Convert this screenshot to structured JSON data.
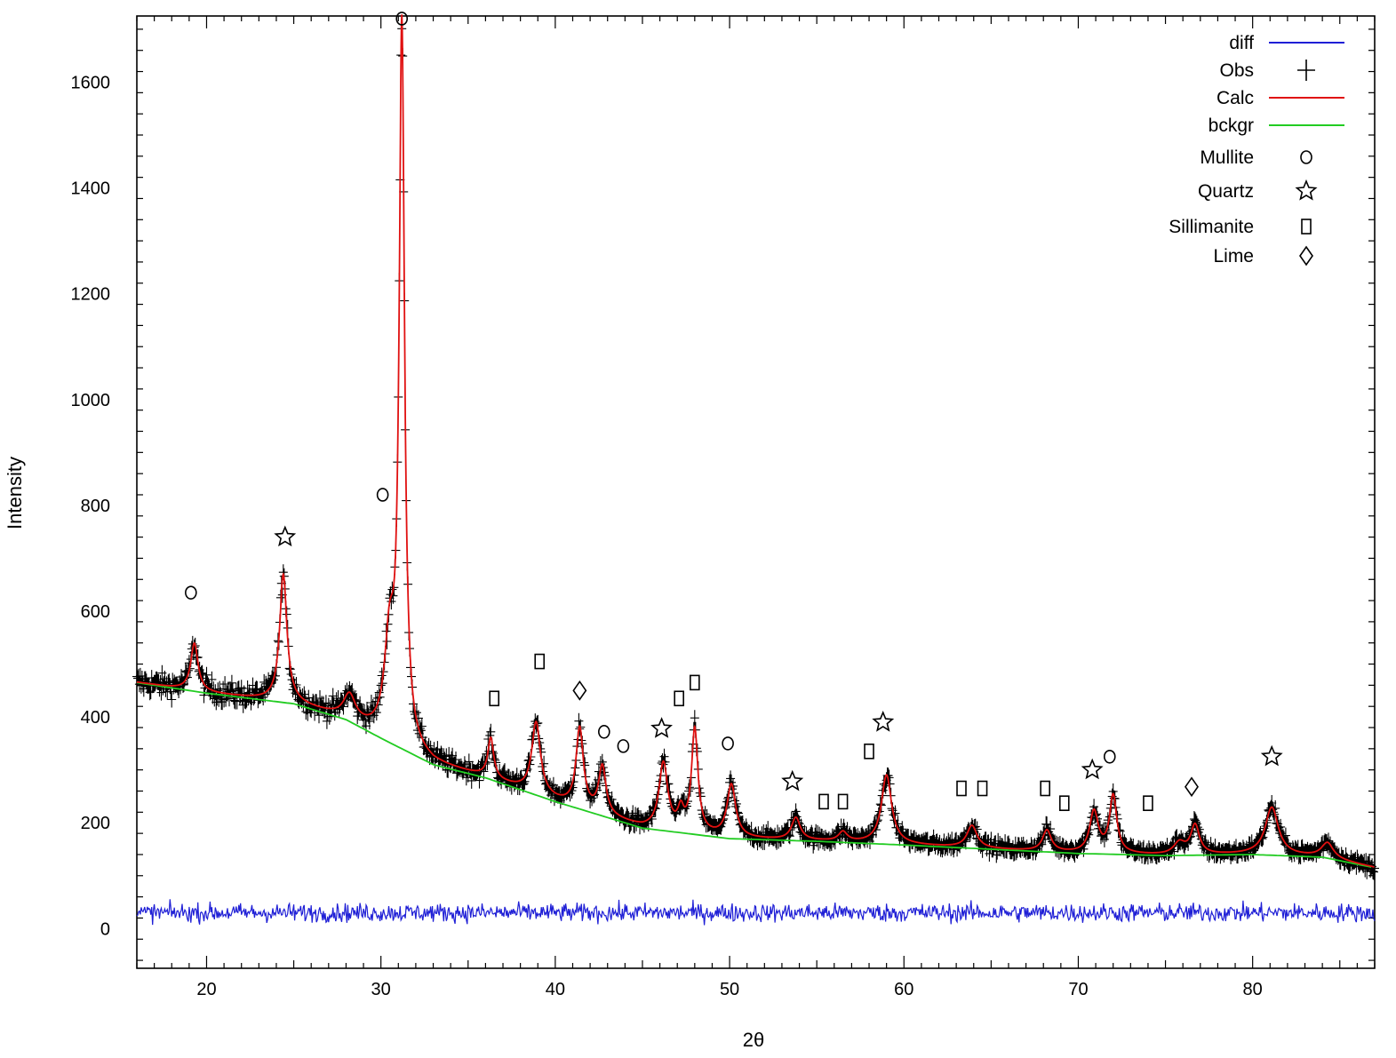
{
  "chart_data": {
    "type": "line",
    "title": "",
    "xlabel": "2θ",
    "ylabel": "Intensity",
    "xlim": [
      16,
      87
    ],
    "ylim": [
      -75,
      1725
    ],
    "x_ticks": [
      20,
      30,
      40,
      50,
      60,
      70,
      80
    ],
    "y_ticks": [
      0,
      200,
      400,
      600,
      800,
      1000,
      1200,
      1400,
      1600
    ],
    "grid": false,
    "legend_position": "top-right",
    "legend": [
      {
        "label": "diff",
        "kind": "line",
        "color": "#1f1fd6"
      },
      {
        "label": "Obs",
        "kind": "plus",
        "color": "#000000"
      },
      {
        "label": "Calc",
        "kind": "line",
        "color": "#e01010"
      },
      {
        "label": "bckgr",
        "kind": "line",
        "color": "#22cc22"
      },
      {
        "label": "Mullite",
        "kind": "circle",
        "color": "#000000"
      },
      {
        "label": "Quartz",
        "kind": "star",
        "color": "#000000"
      },
      {
        "label": "Sillimanite",
        "kind": "rect",
        "color": "#000000"
      },
      {
        "label": "Lime",
        "kind": "diamond",
        "color": "#000000"
      }
    ],
    "background": {
      "name": "bckgr",
      "x": [
        16,
        20,
        25,
        28,
        30,
        33,
        36,
        40,
        45,
        50,
        55,
        60,
        65,
        70,
        75,
        80,
        84,
        87
      ],
      "y": [
        465,
        445,
        425,
        395,
        360,
        310,
        285,
        240,
        190,
        170,
        165,
        158,
        150,
        142,
        138,
        140,
        135,
        115
      ]
    },
    "calc_peaks": [
      {
        "x": 19.3,
        "height": 90,
        "width": 0.25
      },
      {
        "x": 24.4,
        "height": 240,
        "width": 0.25
      },
      {
        "x": 28.2,
        "height": 45,
        "width": 0.4
      },
      {
        "x": 30.5,
        "height": 180,
        "width": 0.35
      },
      {
        "x": 31.2,
        "height": 1350,
        "width": 0.18
      },
      {
        "x": 36.3,
        "height": 75,
        "width": 0.2
      },
      {
        "x": 38.9,
        "height": 135,
        "width": 0.3
      },
      {
        "x": 41.4,
        "height": 150,
        "width": 0.25
      },
      {
        "x": 42.7,
        "height": 90,
        "width": 0.25
      },
      {
        "x": 46.2,
        "height": 125,
        "width": 0.3
      },
      {
        "x": 47.2,
        "height": 35,
        "width": 0.2
      },
      {
        "x": 48.0,
        "height": 195,
        "width": 0.22
      },
      {
        "x": 50.1,
        "height": 100,
        "width": 0.3
      },
      {
        "x": 53.8,
        "height": 42,
        "width": 0.3
      },
      {
        "x": 56.5,
        "height": 18,
        "width": 0.3
      },
      {
        "x": 59.0,
        "height": 130,
        "width": 0.35
      },
      {
        "x": 63.9,
        "height": 42,
        "width": 0.35
      },
      {
        "x": 68.2,
        "height": 40,
        "width": 0.3
      },
      {
        "x": 70.9,
        "height": 78,
        "width": 0.3
      },
      {
        "x": 72.0,
        "height": 108,
        "width": 0.25
      },
      {
        "x": 75.8,
        "height": 22,
        "width": 0.4
      },
      {
        "x": 76.7,
        "height": 55,
        "width": 0.3
      },
      {
        "x": 81.1,
        "height": 90,
        "width": 0.45
      },
      {
        "x": 84.3,
        "height": 28,
        "width": 0.4
      }
    ],
    "diff_mean": 30,
    "diff_amplitude": 30,
    "phase_markers": [
      {
        "phase": "Mullite",
        "x": 19.1,
        "y": 635
      },
      {
        "phase": "Quartz",
        "x": 24.5,
        "y": 740
      },
      {
        "phase": "Mullite",
        "x": 30.1,
        "y": 820
      },
      {
        "phase": "Mullite",
        "x": 31.2,
        "y": 1720
      },
      {
        "phase": "Sillimanite",
        "x": 36.5,
        "y": 435
      },
      {
        "phase": "Sillimanite",
        "x": 39.1,
        "y": 505
      },
      {
        "phase": "Lime",
        "x": 41.4,
        "y": 450
      },
      {
        "phase": "Mullite",
        "x": 42.8,
        "y": 372
      },
      {
        "phase": "Mullite",
        "x": 43.9,
        "y": 345
      },
      {
        "phase": "Quartz",
        "x": 46.1,
        "y": 378
      },
      {
        "phase": "Sillimanite",
        "x": 47.1,
        "y": 435
      },
      {
        "phase": "Sillimanite",
        "x": 48.0,
        "y": 465
      },
      {
        "phase": "Mullite",
        "x": 49.9,
        "y": 350
      },
      {
        "phase": "Quartz",
        "x": 53.6,
        "y": 278
      },
      {
        "phase": "Sillimanite",
        "x": 55.4,
        "y": 240
      },
      {
        "phase": "Sillimanite",
        "x": 56.5,
        "y": 240
      },
      {
        "phase": "Sillimanite",
        "x": 58.0,
        "y": 335
      },
      {
        "phase": "Quartz",
        "x": 58.8,
        "y": 390
      },
      {
        "phase": "Sillimanite",
        "x": 63.3,
        "y": 265
      },
      {
        "phase": "Sillimanite",
        "x": 64.5,
        "y": 265
      },
      {
        "phase": "Sillimanite",
        "x": 68.1,
        "y": 265
      },
      {
        "phase": "Sillimanite",
        "x": 69.2,
        "y": 237
      },
      {
        "phase": "Quartz",
        "x": 70.8,
        "y": 300
      },
      {
        "phase": "Mullite",
        "x": 71.8,
        "y": 325
      },
      {
        "phase": "Sillimanite",
        "x": 74.0,
        "y": 237
      },
      {
        "phase": "Lime",
        "x": 76.5,
        "y": 268
      },
      {
        "phase": "Quartz",
        "x": 81.1,
        "y": 325
      }
    ]
  }
}
